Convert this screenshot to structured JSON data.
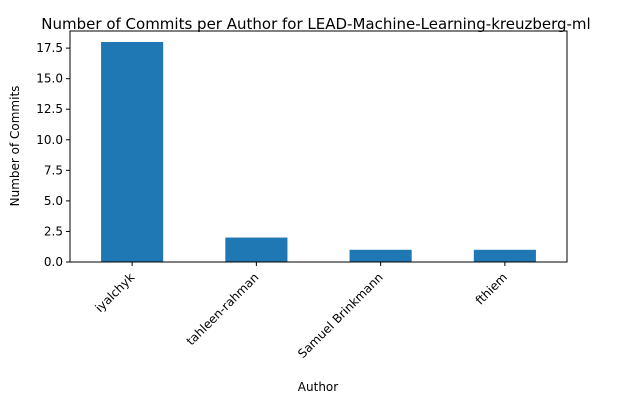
{
  "chart_data": {
    "type": "bar",
    "title": "Number of Commits per Author for LEAD-Machine-Learning-kreuzberg-ml",
    "xlabel": "Author",
    "ylabel": "Number of Commits",
    "categories": [
      "iyalchyk",
      "tahleen-rahman",
      "Samuel Brinkmann",
      "fthiem"
    ],
    "values": [
      18,
      2,
      1,
      1
    ],
    "ylim": [
      0,
      18.9
    ],
    "yticks": [
      "0.0",
      "2.5",
      "5.0",
      "7.5",
      "10.0",
      "12.5",
      "15.0",
      "17.5"
    ],
    "grid": false,
    "bar_color": "#1f77b4"
  }
}
